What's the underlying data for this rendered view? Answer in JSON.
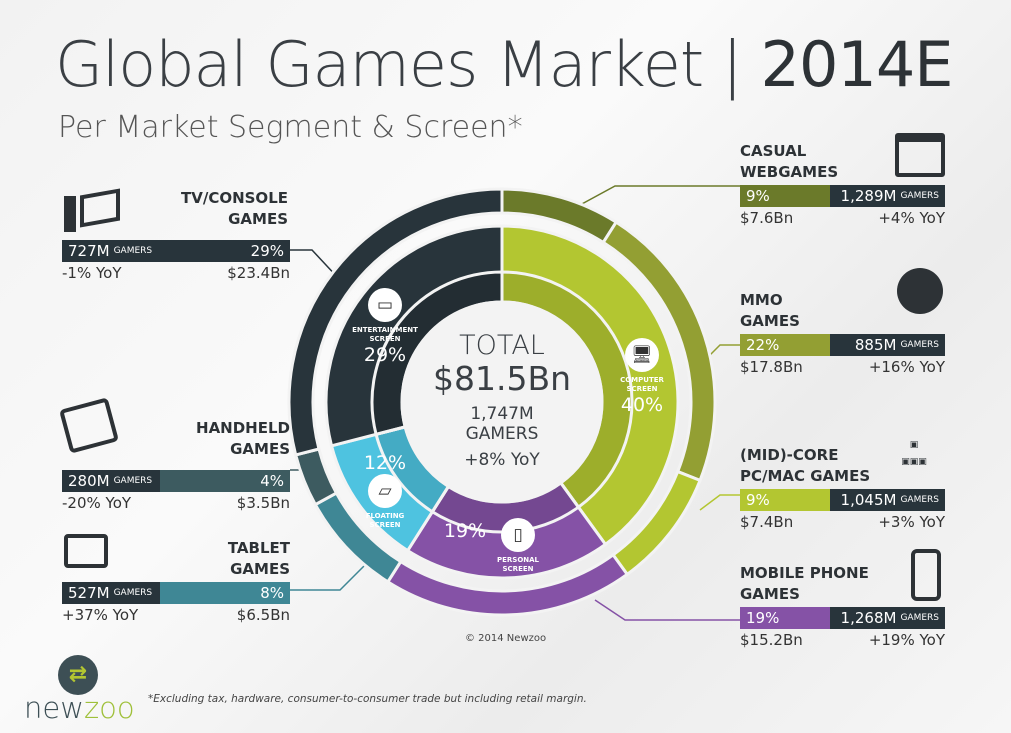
{
  "header": {
    "title": "Global Games Market | ",
    "title_year": "2014E",
    "subtitle": "Per Market Segment & Screen*"
  },
  "center": {
    "label": "TOTAL",
    "revenue": "$81.5Bn",
    "gamers": "1,747M",
    "gamers_label": "GAMERS",
    "growth": "+8% YoY"
  },
  "screens": [
    {
      "name": "ENTERTAINMENT SCREEN",
      "line1": "ENTERTAINMENT",
      "line2": "SCREEN",
      "pct": "29%"
    },
    {
      "name": "COMPUTER SCREEN",
      "line1": "COMPUTER",
      "line2": "SCREEN",
      "pct": "40%"
    },
    {
      "name": "PERSONAL SCREEN",
      "line1": "PERSONAL",
      "line2": "SCREEN",
      "pct": "19%"
    },
    {
      "name": "FLOATING SCREEN",
      "line1": "FLOATING",
      "line2": "SCREEN",
      "pct": "12%"
    }
  ],
  "segments": {
    "tv": {
      "t1": "TV/CONSOLE",
      "t2": "GAMES",
      "gamers": "727M",
      "unit": "GAMERS",
      "pct": "29%",
      "yoy": "-1% YoY",
      "rev": "$23.4Bn"
    },
    "handheld": {
      "t1": "HANDHELD",
      "t2": "GAMES",
      "gamers": "280M",
      "unit": "GAMERS",
      "pct": "4%",
      "yoy": "-20% YoY",
      "rev": "$3.5Bn"
    },
    "tablet": {
      "t1": "TABLET",
      "t2": "GAMES",
      "gamers": "527M",
      "unit": "GAMERS",
      "pct": "8%",
      "yoy": "+37% YoY",
      "rev": "$6.5Bn"
    },
    "casual": {
      "t1": "CASUAL",
      "t2": "WEBGAMES",
      "gamers": "1,289M",
      "unit": "GAMERS",
      "pct": "9%",
      "yoy": "+4% YoY",
      "rev": "$7.6Bn"
    },
    "mmo": {
      "t1": "MMO",
      "t2": "GAMES",
      "gamers": "885M",
      "unit": "GAMERS",
      "pct": "22%",
      "yoy": "+16% YoY",
      "rev": "$17.8Bn"
    },
    "midcore": {
      "t1": "(MID)-CORE",
      "t2": "PC/MAC GAMES",
      "gamers": "1,045M",
      "unit": "GAMERS",
      "pct": "9%",
      "yoy": "+3% YoY",
      "rev": "$7.4Bn"
    },
    "mobile": {
      "t1": "MOBILE PHONE",
      "t2": "GAMES",
      "gamers": "1,268M",
      "unit": "GAMERS",
      "pct": "19%",
      "yoy": "+19% YoY",
      "rev": "$15.2Bn"
    }
  },
  "footer": {
    "copyright": "© 2014 Newzoo",
    "note": "*Excluding tax, hardware, consumer-to-consumer trade but including retail margin.",
    "logo_a": "new",
    "logo_b": "zoo"
  },
  "chart_data": {
    "type": "pie",
    "title": "Global Games Market 2014E",
    "inner_ring": {
      "categories": [
        "Computer Screen",
        "Personal Screen",
        "Floating Screen",
        "Entertainment Screen"
      ],
      "values": [
        40,
        19,
        12,
        29
      ],
      "colors": [
        "#b3c631",
        "#8552a6",
        "#4ec3e0",
        "#28343b"
      ]
    },
    "outer_ring": {
      "categories": [
        "Casual Webgames",
        "MMO Games",
        "(Mid)-Core PC/Mac Games",
        "Mobile Phone Games",
        "Tablet Games",
        "Handheld Games",
        "TV/Console Games"
      ],
      "values": [
        9,
        22,
        9,
        19,
        8,
        4,
        29
      ],
      "colors": [
        "#6b7a2a",
        "#939f33",
        "#b3c631",
        "#8552a6",
        "#3f8795",
        "#3d5b60",
        "#28343b"
      ]
    },
    "total_revenue_bn": 81.5
  }
}
